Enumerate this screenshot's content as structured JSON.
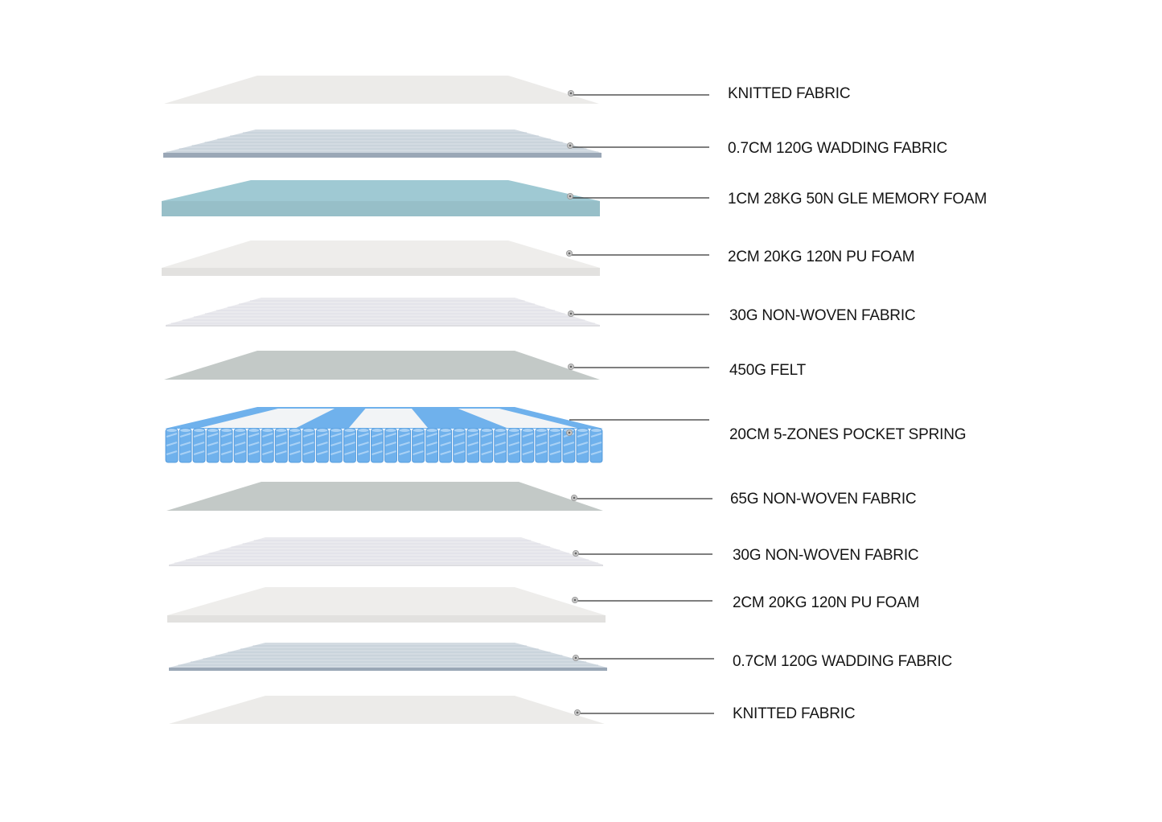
{
  "layers": [
    {
      "label": "KNITTED  FABRIC",
      "material": "knit"
    },
    {
      "label": "0.7CM 120G WADDING FABRIC",
      "material": "wadding"
    },
    {
      "label": "1CM 28KG 50N GLE MEMORY FOAM",
      "material": "memory"
    },
    {
      "label": "2CM 20KG 120N PU FOAM",
      "material": "pu"
    },
    {
      "label": "30G NON-WOVEN FABRIC",
      "material": "nonwoven"
    },
    {
      "label": "450G FELT",
      "material": "felt"
    },
    {
      "label": "20CM 5-ZONES POCKET SPRING",
      "material": "spring"
    },
    {
      "label": "65G NON-WOVEN FABRIC",
      "material": "felt"
    },
    {
      "label": "30G NON-WOVEN FABRIC",
      "material": "nonwoven"
    },
    {
      "label": "2CM 20KG 120N PU FOAM",
      "material": "pu"
    },
    {
      "label": "0.7CM 120G WADDING FABRIC",
      "material": "wadding"
    },
    {
      "label": "KNITTED  FABRIC",
      "material": "knit"
    }
  ],
  "colors": {
    "knit": "#ecebe9",
    "wadding": "#d3dbe2",
    "memory": "#9fc9d3",
    "pu": "#eeedeb",
    "nonwoven": "#eaeaee",
    "felt": "#c3c9c7",
    "spring_blue": "#6fb1ec",
    "spring_white": "#f2f4f6",
    "leader": "#333333",
    "dot": "#9a9a9a"
  }
}
